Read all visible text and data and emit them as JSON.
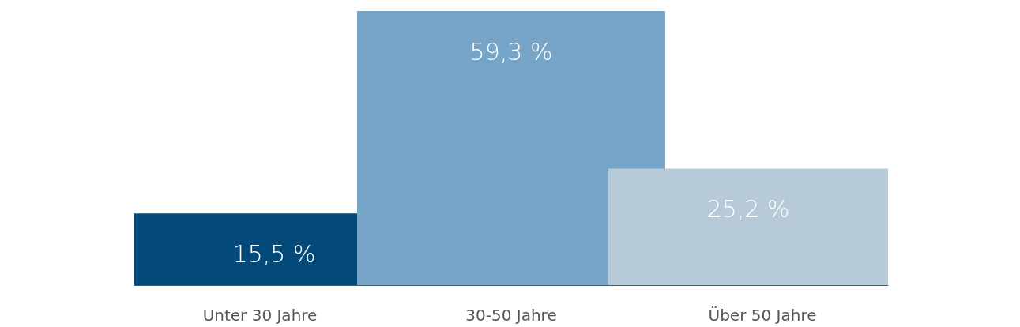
{
  "chart_data": {
    "type": "bar",
    "categories": [
      "Unter 30 Jahre",
      "30-50 Jahre",
      "Über 50 Jahre"
    ],
    "values": [
      15.5,
      59.3,
      25.2
    ],
    "colors": [
      "#034a7a",
      "#77a5c7",
      "#b7cad8"
    ],
    "value_labels": [
      "15,5 %",
      "59,3 %",
      "25,2 %"
    ],
    "ylim": [
      0,
      59.3
    ],
    "tick_labels": "x"
  }
}
